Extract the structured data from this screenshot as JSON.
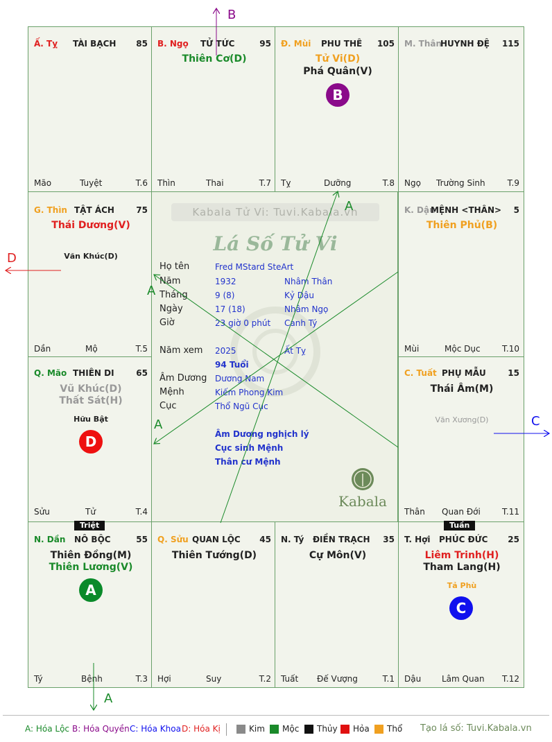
{
  "chart_labels": {
    "arrow_B": "B",
    "arrow_D": "D",
    "arrow_C": "C",
    "arrow_A1": "A",
    "arrow_A2": "A",
    "arrow_A3": "A",
    "arrow_A4": "A"
  },
  "cells": {
    "ty": {
      "branch": "Ấ. Tỵ",
      "palace": "TÀI BẠCH",
      "num": "85",
      "bl": "Mão",
      "bc": "Tuyệt",
      "br": "T.6"
    },
    "ngo": {
      "branch": "B. Ngọ",
      "palace": "TỬ TỨC",
      "num": "95",
      "star1": "Thiên Cơ(D)",
      "bl": "Thìn",
      "bc": "Thai",
      "br": "T.7"
    },
    "mui": {
      "branch": "Đ. Mùi",
      "palace": "PHU THÊ",
      "num": "105",
      "star1": "Tử Vi(D)",
      "star2": "Phá Quân(V)",
      "circle": "B",
      "bl": "Tỵ",
      "bc": "Dưỡng",
      "br": "T.8"
    },
    "than": {
      "branch": "M. Thân",
      "palace": "HUYNH ĐỆ",
      "num": "115",
      "bl": "Ngọ",
      "bc": "Trường Sinh",
      "br": "T.9"
    },
    "thin": {
      "branch": "G. Thìn",
      "palace": "TẬT ÁCH",
      "num": "75",
      "star1": "Thái Dương(V)",
      "minor": "Văn Khúc(D)",
      "bl": "Dần",
      "bc": "Mộ",
      "br": "T.5"
    },
    "dau": {
      "branch": "K. Dậu",
      "palace": "MỆNH <THÂN>",
      "num": "5",
      "star1": "Thiên Phủ(B)",
      "bl": "Mùi",
      "bc": "Mộc Dục",
      "br": "T.10"
    },
    "mao": {
      "branch": "Q. Mão",
      "palace": "THIÊN DI",
      "num": "65",
      "star1": "Vũ Khúc(D)",
      "star2": "Thất Sát(H)",
      "minor": "Hữu Bật",
      "circle": "D",
      "bl": "Sửu",
      "bc": "Tử",
      "br": "T.4"
    },
    "tuat": {
      "branch": "C. Tuất",
      "palace": "PHỤ MẪU",
      "num": "15",
      "star1": "Thái Âm(M)",
      "minor": "Văn Xương(D)",
      "bl": "Thân",
      "bc": "Quan Đới",
      "br": "T.11"
    },
    "dan": {
      "branch": "N. Dần",
      "palace": "NÔ BỘC",
      "num": "55",
      "star1": "Thiên Đồng(M)",
      "star2": "Thiên Lương(V)",
      "circle": "A",
      "tag": "Triệt",
      "bl": "Tý",
      "bc": "Bệnh",
      "br": "T.3"
    },
    "suu": {
      "branch": "Q. Sửu",
      "palace": "QUAN LỘC",
      "num": "45",
      "star1": "Thiên Tướng(D)",
      "bl": "Hợi",
      "bc": "Suy",
      "br": "T.2"
    },
    "tyt": {
      "branch": "N. Tý",
      "palace": "ĐIỀN TRẠCH",
      "num": "35",
      "star1": "Cự Môn(V)",
      "bl": "Tuất",
      "bc": "Đế Vượng",
      "br": "T.1"
    },
    "hoi": {
      "branch": "T. Hợi",
      "palace": "PHÚC ĐỨC",
      "num": "25",
      "star1": "Liêm Trinh(H)",
      "star2": "Tham Lang(H)",
      "minor": "Tả Phù",
      "circle": "C",
      "tag": "Tuần",
      "bl": "Dậu",
      "bc": "Lâm Quan",
      "br": "T.12"
    }
  },
  "center": {
    "banner": "Kabala Tử Vi: Tuvi.Kabala.vn",
    "title": "Lá Số Tử Vi",
    "labels": {
      "name": "Họ tên",
      "year": "Năm",
      "month": "Tháng",
      "day": "Ngày",
      "hour": "Giờ",
      "view_year": "Năm xem",
      "am_duong": "Âm Dương",
      "menh": "Mệnh",
      "cuc": "Cục"
    },
    "values": {
      "name": "Fred MStard SteArt",
      "year": "1932",
      "year_can": "Nhâm Thân",
      "month": "9  (8)",
      "month_can": "Kỷ Dậu",
      "day": "17  (18)",
      "day_can": "Nhâm Ngọ",
      "hour": "23 giờ 0 phút",
      "hour_can": "Canh Tý",
      "view_year": "2025",
      "view_can": "Ất Tỵ",
      "age": "94 Tuổi",
      "am_duong": "Dương Nam",
      "menh": "Kiếm Phong Kim",
      "cuc": "Thổ Ngũ Cục",
      "note1": "Âm Dương nghịch lý",
      "note2": "Cục sinh Mệnh",
      "note3": "Thân cư Mệnh"
    },
    "logo": "Kabala"
  },
  "legend": {
    "a": "A: Hóa Lộc",
    "b": "B: Hóa Quyền",
    "c": "C: Hóa Khoa",
    "d": "D: Hóa Kị",
    "kim": "Kim",
    "moc": "Mộc",
    "thuy": "Thủy",
    "hoa": "Hỏa",
    "tho": "Thổ",
    "site": "Tạo lá số: Tuvi.Kabala.vn"
  },
  "colors": {
    "kim": "#8a8a8a",
    "moc": "#1a8a2a",
    "thuy": "#111111",
    "hoa": "#e01010",
    "tho": "#f0a020"
  }
}
